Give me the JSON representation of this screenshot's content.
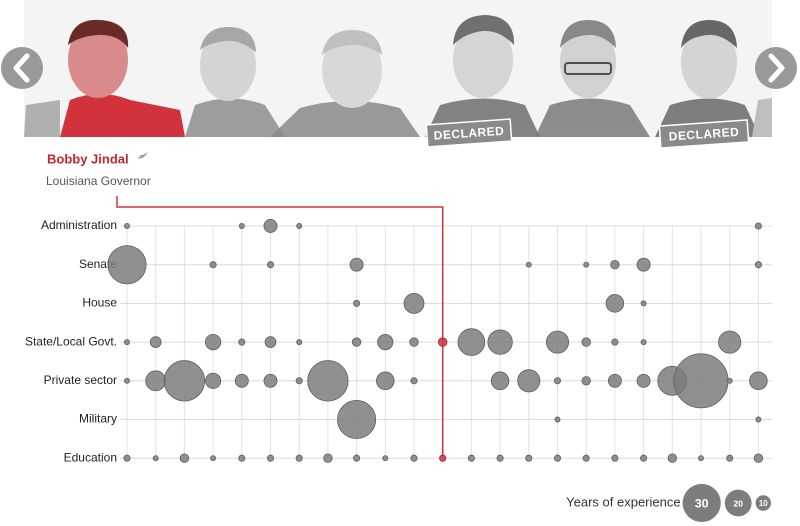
{
  "chart_data": {
    "type": "bubble",
    "selected": {
      "name": "Bobby Jindal",
      "subtitle": "Louisiana Governor",
      "index": 11
    },
    "categories": [
      null,
      null,
      null,
      null,
      null,
      null,
      null,
      null,
      null,
      null,
      null,
      null,
      null,
      null,
      null,
      null,
      null,
      null,
      null,
      null,
      null,
      null,
      null
    ],
    "color": "#7d7d7d",
    "highlight_color": "#d2323c",
    "series": [
      {
        "name": "Administration",
        "values": [
          1,
          null,
          null,
          null,
          1,
          8,
          1,
          null,
          null,
          null,
          null,
          null,
          null,
          null,
          null,
          null,
          null,
          null,
          null,
          null,
          null,
          null,
          2
        ]
      },
      {
        "name": "Senate",
        "values": [
          30,
          null,
          null,
          2,
          null,
          2,
          null,
          null,
          8,
          null,
          null,
          null,
          null,
          null,
          1,
          null,
          1,
          4,
          8,
          null,
          null,
          null,
          2
        ]
      },
      {
        "name": "House",
        "values": [
          null,
          null,
          null,
          null,
          null,
          null,
          null,
          null,
          2,
          null,
          14,
          null,
          null,
          null,
          null,
          null,
          null,
          12,
          1,
          null,
          null,
          null,
          null
        ]
      },
      {
        "name": "State/Local Govt.",
        "values": [
          1,
          6,
          null,
          10,
          2,
          6,
          1,
          null,
          4,
          10,
          4,
          4,
          20,
          18,
          null,
          16,
          4,
          2,
          1,
          null,
          null,
          16,
          null
        ]
      },
      {
        "name": "Private sector",
        "values": [
          1,
          14,
          32,
          10,
          8,
          8,
          2,
          32,
          null,
          12,
          2,
          null,
          null,
          12,
          16,
          2,
          4,
          8,
          8,
          22,
          44,
          1,
          12
        ]
      },
      {
        "name": "Military",
        "values": [
          null,
          null,
          null,
          null,
          null,
          null,
          null,
          null,
          30,
          null,
          null,
          null,
          null,
          null,
          null,
          1,
          null,
          null,
          null,
          null,
          null,
          null,
          1
        ]
      },
      {
        "name": "Education",
        "values": [
          2,
          1,
          4,
          1,
          2,
          2,
          2,
          4,
          2,
          1,
          2,
          2,
          2,
          2,
          2,
          2,
          2,
          2,
          2,
          4,
          1,
          2,
          4
        ]
      }
    ],
    "legend": {
      "title": "Years of experience",
      "sizes": [
        30,
        20,
        10
      ]
    }
  },
  "carousel": {
    "badges": [
      "DECLARED",
      "DECLARED"
    ]
  }
}
